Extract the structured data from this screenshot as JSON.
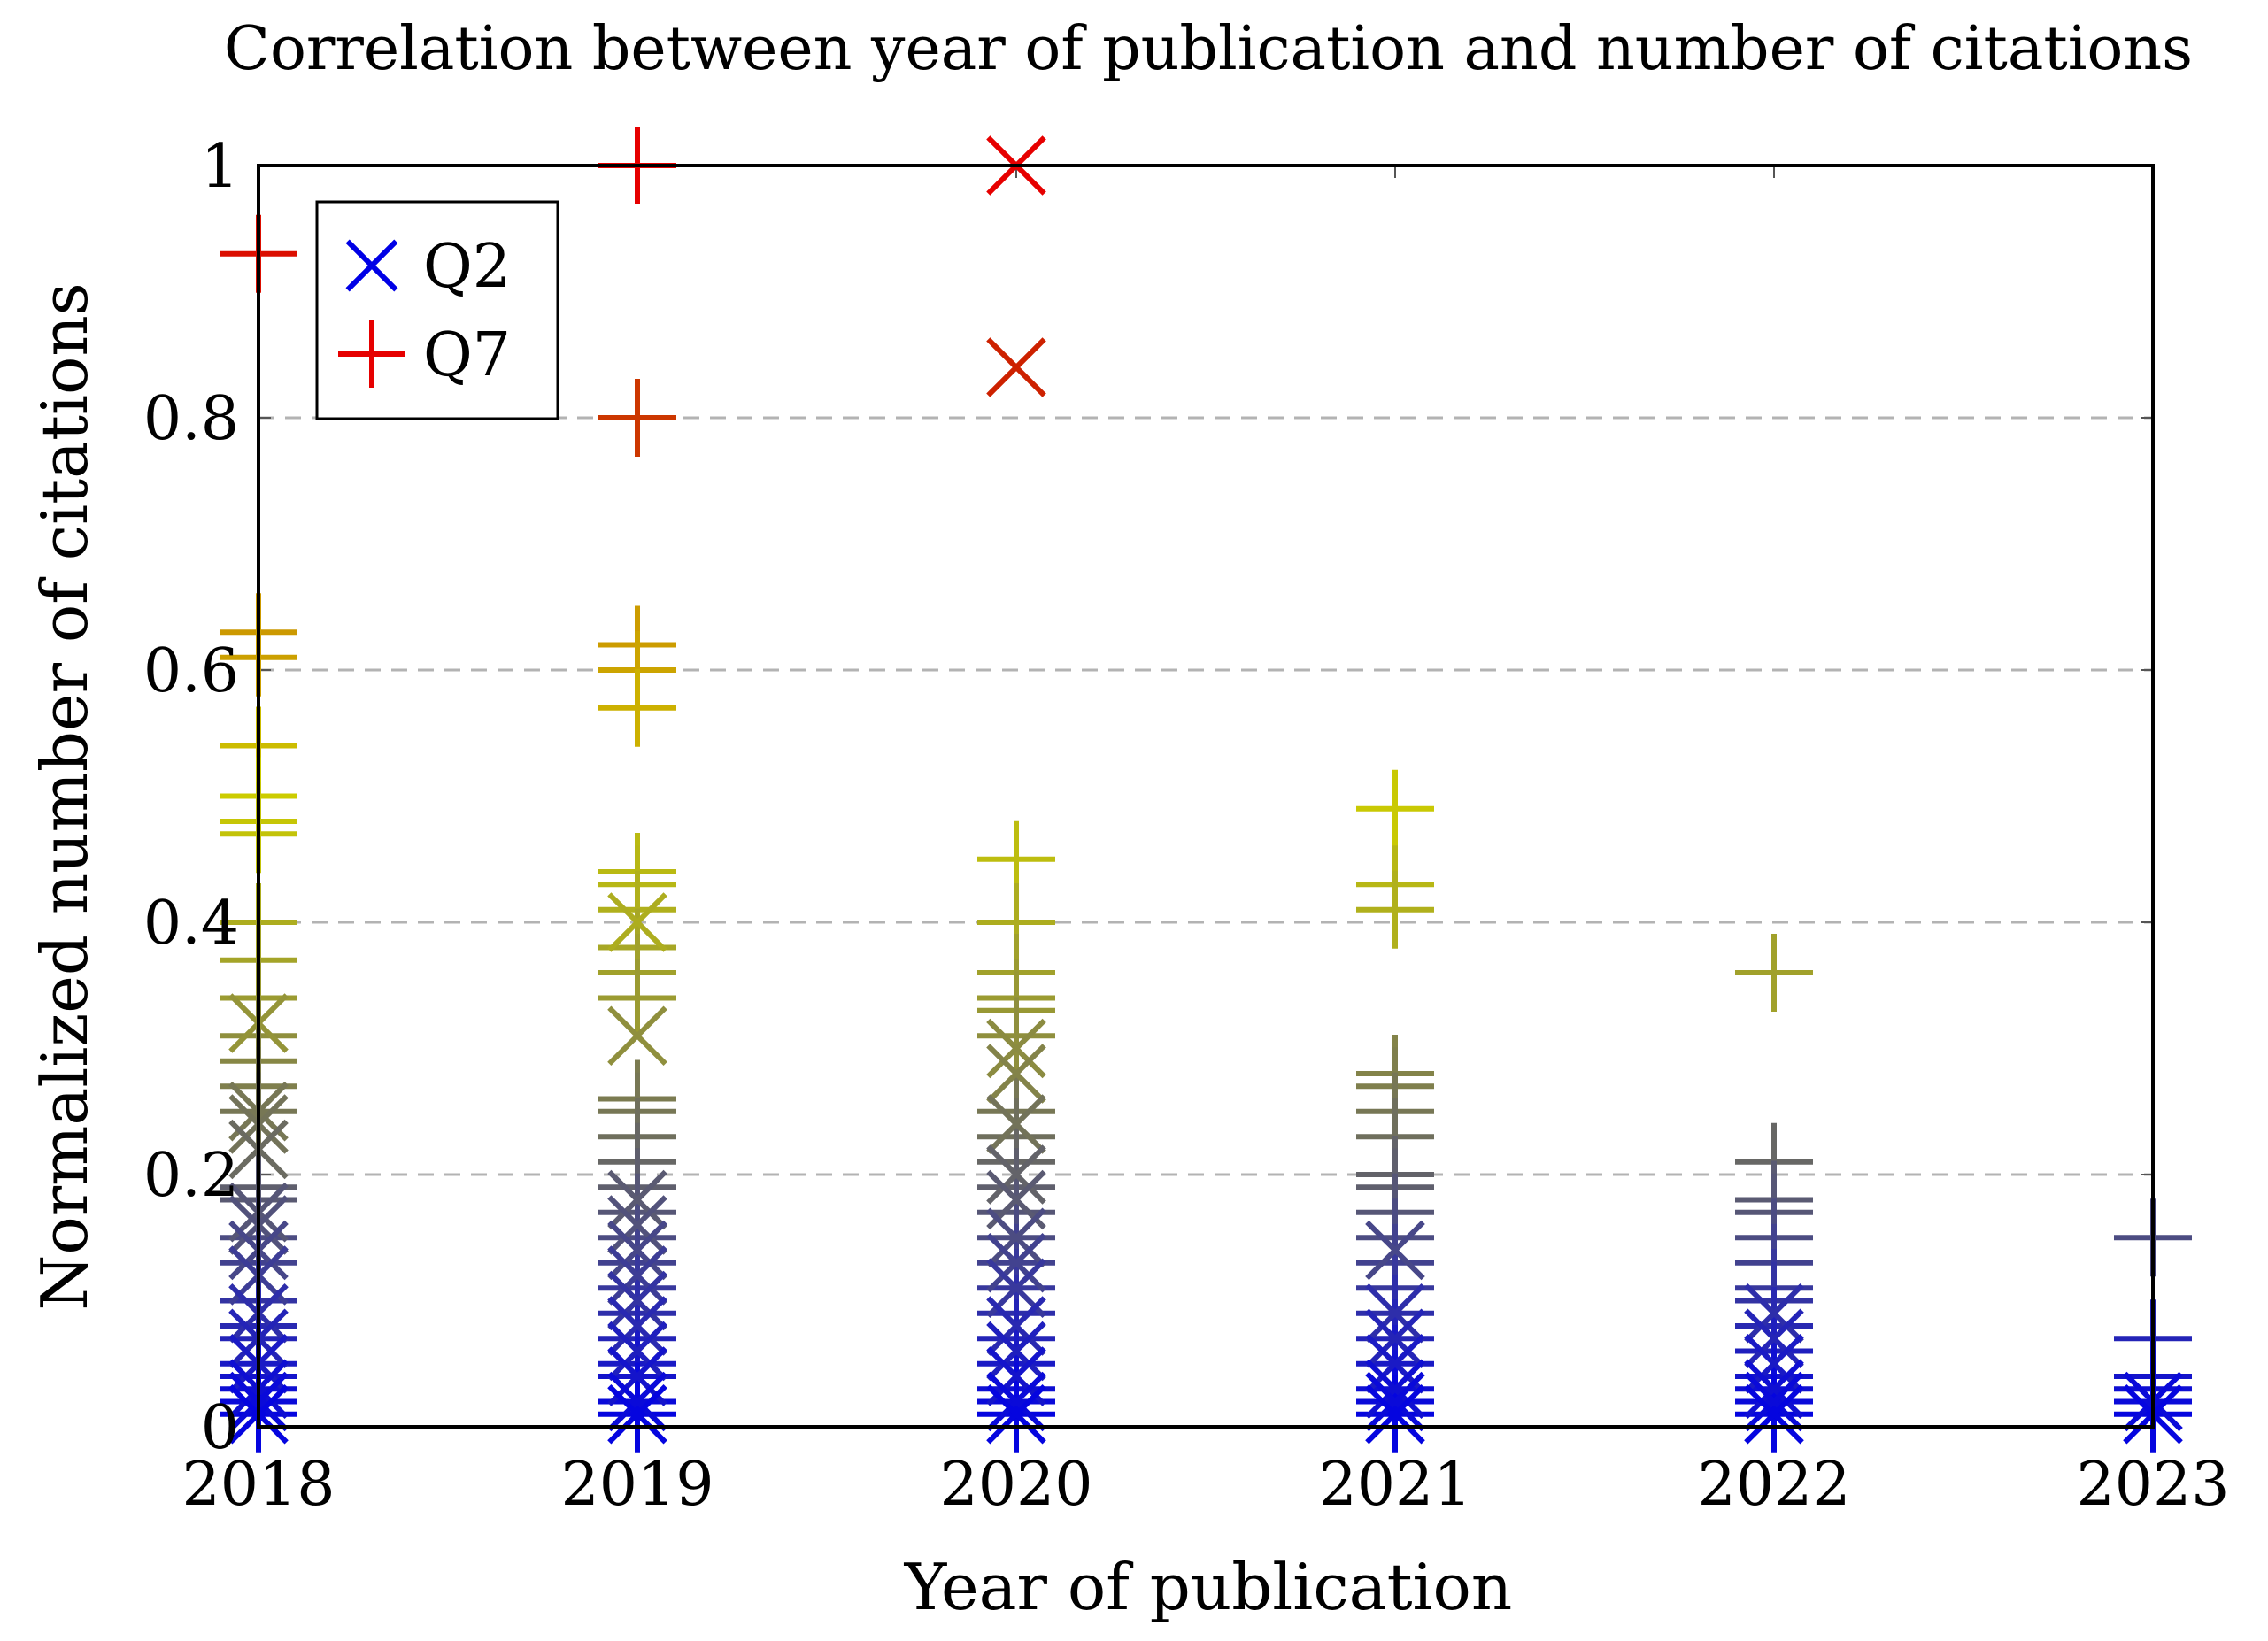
{
  "chart_data": {
    "type": "scatter",
    "title": "Correlation between year of publication and number of citations",
    "xlabel": "Year of publication",
    "ylabel": "Normalized number of citations",
    "xlim": [
      2018,
      2023
    ],
    "ylim": [
      0,
      1
    ],
    "x_ticks": [
      "2018",
      "2019",
      "2020",
      "2021",
      "2022",
      "2023"
    ],
    "y_ticks": [
      "0",
      "0.2",
      "0.4",
      "0.6",
      "0.8",
      "1"
    ],
    "grid": "horizontal dashed",
    "legend_position": "top-left",
    "colormap": [
      "#0000e6",
      "#555577",
      "#999933",
      "#cccc00",
      "#cc8a00",
      "#cc2200",
      "#e60000"
    ],
    "series": [
      {
        "name": "Q2",
        "marker": "x",
        "points": [
          {
            "x": 2018,
            "y": 0.32
          },
          {
            "x": 2018,
            "y": 0.25
          },
          {
            "x": 2018,
            "y": 0.24
          },
          {
            "x": 2018,
            "y": 0.22
          },
          {
            "x": 2018,
            "y": 0.17
          },
          {
            "x": 2018,
            "y": 0.16
          },
          {
            "x": 2018,
            "y": 0.14
          },
          {
            "x": 2018,
            "y": 0.12
          },
          {
            "x": 2018,
            "y": 0.09
          },
          {
            "x": 2018,
            "y": 0.07
          },
          {
            "x": 2018,
            "y": 0.05
          },
          {
            "x": 2018,
            "y": 0.03
          },
          {
            "x": 2018,
            "y": 0.02
          },
          {
            "x": 2018,
            "y": 0.01
          },
          {
            "x": 2019,
            "y": 0.4
          },
          {
            "x": 2019,
            "y": 0.31
          },
          {
            "x": 2019,
            "y": 0.18
          },
          {
            "x": 2019,
            "y": 0.16
          },
          {
            "x": 2019,
            "y": 0.14
          },
          {
            "x": 2019,
            "y": 0.12
          },
          {
            "x": 2019,
            "y": 0.1
          },
          {
            "x": 2019,
            "y": 0.08
          },
          {
            "x": 2019,
            "y": 0.06
          },
          {
            "x": 2019,
            "y": 0.04
          },
          {
            "x": 2019,
            "y": 0.02
          },
          {
            "x": 2019,
            "y": 0.01
          },
          {
            "x": 2020,
            "y": 1.0
          },
          {
            "x": 2020,
            "y": 0.84
          },
          {
            "x": 2020,
            "y": 0.3
          },
          {
            "x": 2020,
            "y": 0.28
          },
          {
            "x": 2020,
            "y": 0.24
          },
          {
            "x": 2020,
            "y": 0.2
          },
          {
            "x": 2020,
            "y": 0.18
          },
          {
            "x": 2020,
            "y": 0.15
          },
          {
            "x": 2020,
            "y": 0.13
          },
          {
            "x": 2020,
            "y": 0.11
          },
          {
            "x": 2020,
            "y": 0.08
          },
          {
            "x": 2020,
            "y": 0.06
          },
          {
            "x": 2020,
            "y": 0.04
          },
          {
            "x": 2020,
            "y": 0.02
          },
          {
            "x": 2020,
            "y": 0.01
          },
          {
            "x": 2021,
            "y": 0.14
          },
          {
            "x": 2021,
            "y": 0.09
          },
          {
            "x": 2021,
            "y": 0.07
          },
          {
            "x": 2021,
            "y": 0.05
          },
          {
            "x": 2021,
            "y": 0.03
          },
          {
            "x": 2021,
            "y": 0.02
          },
          {
            "x": 2021,
            "y": 0.01
          },
          {
            "x": 2022,
            "y": 0.09
          },
          {
            "x": 2022,
            "y": 0.07
          },
          {
            "x": 2022,
            "y": 0.05
          },
          {
            "x": 2022,
            "y": 0.03
          },
          {
            "x": 2022,
            "y": 0.02
          },
          {
            "x": 2022,
            "y": 0.01
          },
          {
            "x": 2023,
            "y": 0.02
          },
          {
            "x": 2023,
            "y": 0.01
          }
        ]
      },
      {
        "name": "Q7",
        "marker": "+",
        "points": [
          {
            "x": 2018,
            "y": 0.93
          },
          {
            "x": 2018,
            "y": 0.63
          },
          {
            "x": 2018,
            "y": 0.61
          },
          {
            "x": 2018,
            "y": 0.54
          },
          {
            "x": 2018,
            "y": 0.5
          },
          {
            "x": 2018,
            "y": 0.48
          },
          {
            "x": 2018,
            "y": 0.47
          },
          {
            "x": 2018,
            "y": 0.4
          },
          {
            "x": 2018,
            "y": 0.37
          },
          {
            "x": 2018,
            "y": 0.34
          },
          {
            "x": 2018,
            "y": 0.31
          },
          {
            "x": 2018,
            "y": 0.29
          },
          {
            "x": 2018,
            "y": 0.27
          },
          {
            "x": 2018,
            "y": 0.25
          },
          {
            "x": 2018,
            "y": 0.19
          },
          {
            "x": 2018,
            "y": 0.18
          },
          {
            "x": 2018,
            "y": 0.15
          },
          {
            "x": 2018,
            "y": 0.13
          },
          {
            "x": 2018,
            "y": 0.1
          },
          {
            "x": 2018,
            "y": 0.08
          },
          {
            "x": 2018,
            "y": 0.07
          },
          {
            "x": 2018,
            "y": 0.05
          },
          {
            "x": 2018,
            "y": 0.04
          },
          {
            "x": 2018,
            "y": 0.03
          },
          {
            "x": 2018,
            "y": 0.02
          },
          {
            "x": 2018,
            "y": 0.01
          },
          {
            "x": 2019,
            "y": 1.0
          },
          {
            "x": 2019,
            "y": 0.8
          },
          {
            "x": 2019,
            "y": 0.62
          },
          {
            "x": 2019,
            "y": 0.6
          },
          {
            "x": 2019,
            "y": 0.57
          },
          {
            "x": 2019,
            "y": 0.44
          },
          {
            "x": 2019,
            "y": 0.43
          },
          {
            "x": 2019,
            "y": 0.41
          },
          {
            "x": 2019,
            "y": 0.38
          },
          {
            "x": 2019,
            "y": 0.36
          },
          {
            "x": 2019,
            "y": 0.34
          },
          {
            "x": 2019,
            "y": 0.26
          },
          {
            "x": 2019,
            "y": 0.25
          },
          {
            "x": 2019,
            "y": 0.23
          },
          {
            "x": 2019,
            "y": 0.21
          },
          {
            "x": 2019,
            "y": 0.19
          },
          {
            "x": 2019,
            "y": 0.17
          },
          {
            "x": 2019,
            "y": 0.15
          },
          {
            "x": 2019,
            "y": 0.13
          },
          {
            "x": 2019,
            "y": 0.11
          },
          {
            "x": 2019,
            "y": 0.09
          },
          {
            "x": 2019,
            "y": 0.07
          },
          {
            "x": 2019,
            "y": 0.05
          },
          {
            "x": 2019,
            "y": 0.04
          },
          {
            "x": 2019,
            "y": 0.02
          },
          {
            "x": 2019,
            "y": 0.01
          },
          {
            "x": 2020,
            "y": 0.45
          },
          {
            "x": 2020,
            "y": 0.4
          },
          {
            "x": 2020,
            "y": 0.36
          },
          {
            "x": 2020,
            "y": 0.34
          },
          {
            "x": 2020,
            "y": 0.33
          },
          {
            "x": 2020,
            "y": 0.31
          },
          {
            "x": 2020,
            "y": 0.25
          },
          {
            "x": 2020,
            "y": 0.23
          },
          {
            "x": 2020,
            "y": 0.21
          },
          {
            "x": 2020,
            "y": 0.19
          },
          {
            "x": 2020,
            "y": 0.17
          },
          {
            "x": 2020,
            "y": 0.15
          },
          {
            "x": 2020,
            "y": 0.13
          },
          {
            "x": 2020,
            "y": 0.11
          },
          {
            "x": 2020,
            "y": 0.09
          },
          {
            "x": 2020,
            "y": 0.07
          },
          {
            "x": 2020,
            "y": 0.05
          },
          {
            "x": 2020,
            "y": 0.03
          },
          {
            "x": 2020,
            "y": 0.02
          },
          {
            "x": 2020,
            "y": 0.01
          },
          {
            "x": 2021,
            "y": 0.49
          },
          {
            "x": 2021,
            "y": 0.43
          },
          {
            "x": 2021,
            "y": 0.41
          },
          {
            "x": 2021,
            "y": 0.28
          },
          {
            "x": 2021,
            "y": 0.27
          },
          {
            "x": 2021,
            "y": 0.25
          },
          {
            "x": 2021,
            "y": 0.23
          },
          {
            "x": 2021,
            "y": 0.2
          },
          {
            "x": 2021,
            "y": 0.19
          },
          {
            "x": 2021,
            "y": 0.17
          },
          {
            "x": 2021,
            "y": 0.15
          },
          {
            "x": 2021,
            "y": 0.13
          },
          {
            "x": 2021,
            "y": 0.11
          },
          {
            "x": 2021,
            "y": 0.09
          },
          {
            "x": 2021,
            "y": 0.07
          },
          {
            "x": 2021,
            "y": 0.05
          },
          {
            "x": 2021,
            "y": 0.03
          },
          {
            "x": 2021,
            "y": 0.02
          },
          {
            "x": 2021,
            "y": 0.01
          },
          {
            "x": 2022,
            "y": 0.36
          },
          {
            "x": 2022,
            "y": 0.21
          },
          {
            "x": 2022,
            "y": 0.18
          },
          {
            "x": 2022,
            "y": 0.17
          },
          {
            "x": 2022,
            "y": 0.15
          },
          {
            "x": 2022,
            "y": 0.13
          },
          {
            "x": 2022,
            "y": 0.11
          },
          {
            "x": 2022,
            "y": 0.1
          },
          {
            "x": 2022,
            "y": 0.08
          },
          {
            "x": 2022,
            "y": 0.06
          },
          {
            "x": 2022,
            "y": 0.04
          },
          {
            "x": 2022,
            "y": 0.03
          },
          {
            "x": 2022,
            "y": 0.02
          },
          {
            "x": 2022,
            "y": 0.01
          },
          {
            "x": 2023,
            "y": 0.15
          },
          {
            "x": 2023,
            "y": 0.07
          },
          {
            "x": 2023,
            "y": 0.04
          },
          {
            "x": 2023,
            "y": 0.03
          },
          {
            "x": 2023,
            "y": 0.02
          },
          {
            "x": 2023,
            "y": 0.01
          }
        ]
      }
    ],
    "legend": [
      {
        "label": "Q2",
        "marker": "x",
        "color": "#0000e6"
      },
      {
        "label": "Q7",
        "marker": "+",
        "color": "#e60000"
      }
    ]
  }
}
